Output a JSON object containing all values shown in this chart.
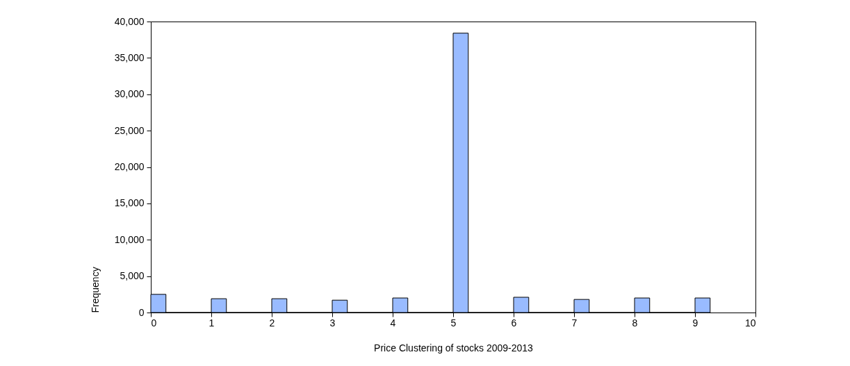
{
  "chart_data": {
    "type": "histogram",
    "xlabel": "Price Clustering of stocks 2009-2013",
    "ylabel": "Frequency",
    "bins": [
      0,
      0.25,
      1,
      1.25,
      2,
      2.25,
      3,
      3.25,
      4,
      4.25,
      5,
      5.25,
      6,
      6.25,
      7,
      7.25,
      8,
      8.25,
      9,
      9.25
    ],
    "values": [
      2500,
      0,
      1900,
      0,
      1900,
      0,
      1700,
      0,
      2000,
      0,
      38400,
      0,
      2100,
      0,
      1800,
      0,
      2000,
      0,
      2000
    ],
    "color": "#99bbff",
    "xlim": [
      0,
      10
    ],
    "xticks": [
      0,
      1,
      2,
      3,
      4,
      5,
      6,
      7,
      8,
      9,
      10
    ],
    "ylim": [
      0,
      40000
    ],
    "yticks": [
      {
        "value": 0,
        "label": "0"
      },
      {
        "value": 5000,
        "label": "5,000"
      },
      {
        "value": 10000,
        "label": "10,000"
      },
      {
        "value": 15000,
        "label": "15,000"
      },
      {
        "value": 20000,
        "label": "20,000"
      },
      {
        "value": 25000,
        "label": "25,000"
      },
      {
        "value": 30000,
        "label": "30,000"
      },
      {
        "value": 35000,
        "label": "35,000"
      },
      {
        "value": 40000,
        "label": "40,000"
      }
    ],
    "grid": false
  }
}
